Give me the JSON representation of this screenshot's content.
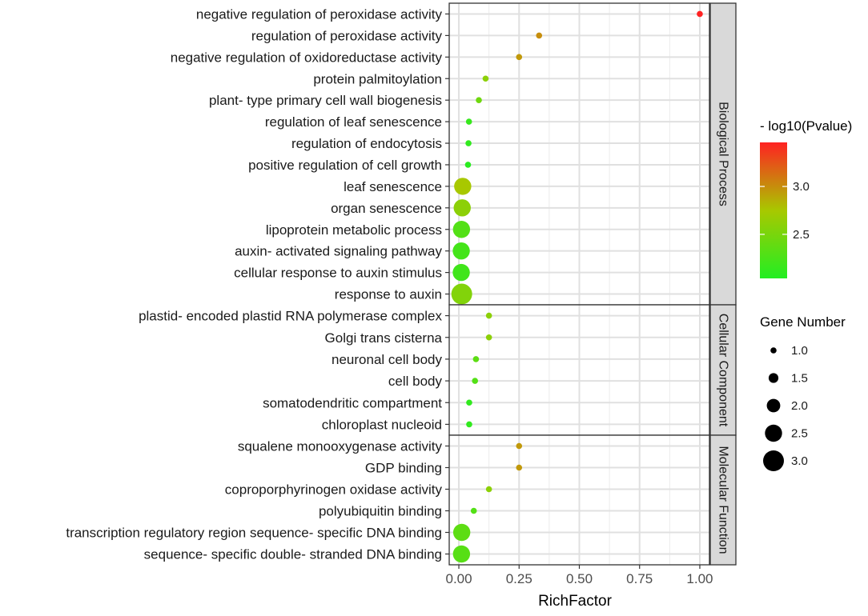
{
  "chart_data": {
    "type": "scatter",
    "title": "",
    "xlabel": "RichFactor",
    "ylabel": "",
    "xlim": [
      -0.04,
      1.04
    ],
    "x_ticks": [
      {
        "value": 0.0,
        "label": "0.00"
      },
      {
        "value": 0.25,
        "label": "0.25"
      },
      {
        "value": 0.5,
        "label": "0.50"
      },
      {
        "value": 0.75,
        "label": "0.75"
      },
      {
        "value": 1.0,
        "label": "1.00"
      }
    ],
    "grid": true,
    "color_scale": {
      "title": "- log10(Pvalue)",
      "min": 2.04,
      "max": 3.46,
      "low_color": "#22ee22",
      "high_color": "#ff2222",
      "ticks": [
        {
          "value": 2.5,
          "label": "2.5"
        },
        {
          "value": 3.0,
          "label": "3.0"
        }
      ]
    },
    "size_scale": {
      "title": "Gene Number",
      "ticks": [
        {
          "value": 1.0,
          "label": "1.0"
        },
        {
          "value": 1.5,
          "label": "1.5"
        },
        {
          "value": 2.0,
          "label": "2.0"
        },
        {
          "value": 2.5,
          "label": "2.5"
        },
        {
          "value": 3.0,
          "label": "3.0"
        }
      ]
    },
    "facets": [
      {
        "name": "Biological Process",
        "terms": [
          {
            "term": "negative regulation of peroxidase activity",
            "rich_factor": 1.0,
            "neg_log10_p": 3.46,
            "gene_number": 1
          },
          {
            "term": "regulation of peroxidase activity",
            "rich_factor": 0.333,
            "neg_log10_p": 3.0,
            "gene_number": 1
          },
          {
            "term": "negative regulation of oxidoreductase activity",
            "rich_factor": 0.25,
            "neg_log10_p": 2.95,
            "gene_number": 1
          },
          {
            "term": "protein palmitoylation",
            "rich_factor": 0.111,
            "neg_log10_p": 2.6,
            "gene_number": 1
          },
          {
            "term": "plant- type primary cell wall biogenesis",
            "rich_factor": 0.083,
            "neg_log10_p": 2.45,
            "gene_number": 1
          },
          {
            "term": "regulation of leaf senescence",
            "rich_factor": 0.042,
            "neg_log10_p": 2.15,
            "gene_number": 1
          },
          {
            "term": "regulation of endocytosis",
            "rich_factor": 0.04,
            "neg_log10_p": 2.12,
            "gene_number": 1
          },
          {
            "term": "positive regulation of cell growth",
            "rich_factor": 0.038,
            "neg_log10_p": 2.08,
            "gene_number": 1
          },
          {
            "term": "leaf senescence",
            "rich_factor": 0.016,
            "neg_log10_p": 2.75,
            "gene_number": 2.5
          },
          {
            "term": "organ senescence",
            "rich_factor": 0.014,
            "neg_log10_p": 2.6,
            "gene_number": 2.5
          },
          {
            "term": "lipoprotein metabolic process",
            "rich_factor": 0.011,
            "neg_log10_p": 2.3,
            "gene_number": 2.5
          },
          {
            "term": "auxin- activated signaling pathway",
            "rich_factor": 0.01,
            "neg_log10_p": 2.22,
            "gene_number": 2.5
          },
          {
            "term": "cellular response to auxin stimulus",
            "rich_factor": 0.01,
            "neg_log10_p": 2.2,
            "gene_number": 2.5
          },
          {
            "term": "response to auxin",
            "rich_factor": 0.012,
            "neg_log10_p": 2.55,
            "gene_number": 3
          }
        ]
      },
      {
        "name": "Cellular Component",
        "terms": [
          {
            "term": "plastid- encoded plastid RNA polymerase complex",
            "rich_factor": 0.125,
            "neg_log10_p": 2.6,
            "gene_number": 1
          },
          {
            "term": "Golgi trans cisterna",
            "rich_factor": 0.125,
            "neg_log10_p": 2.6,
            "gene_number": 1
          },
          {
            "term": "neuronal cell body",
            "rich_factor": 0.071,
            "neg_log10_p": 2.35,
            "gene_number": 1
          },
          {
            "term": "cell body",
            "rich_factor": 0.067,
            "neg_log10_p": 2.3,
            "gene_number": 1
          },
          {
            "term": "somatodendritic compartment",
            "rich_factor": 0.043,
            "neg_log10_p": 2.12,
            "gene_number": 1
          },
          {
            "term": "chloroplast nucleoid",
            "rich_factor": 0.043,
            "neg_log10_p": 2.12,
            "gene_number": 1
          }
        ]
      },
      {
        "name": "Molecular Function",
        "terms": [
          {
            "term": "squalene monooxygenase activity",
            "rich_factor": 0.25,
            "neg_log10_p": 2.95,
            "gene_number": 1
          },
          {
            "term": "GDP binding",
            "rich_factor": 0.25,
            "neg_log10_p": 2.95,
            "gene_number": 1
          },
          {
            "term": "coproporphyrinogen oxidase activity",
            "rich_factor": 0.125,
            "neg_log10_p": 2.6,
            "gene_number": 1
          },
          {
            "term": "polyubiquitin binding",
            "rich_factor": 0.062,
            "neg_log10_p": 2.3,
            "gene_number": 1
          },
          {
            "term": "transcription regulatory region sequence- specific DNA binding",
            "rich_factor": 0.012,
            "neg_log10_p": 2.35,
            "gene_number": 2.5
          },
          {
            "term": "sequence- specific double- stranded DNA binding",
            "rich_factor": 0.011,
            "neg_log10_p": 2.32,
            "gene_number": 2.5
          }
        ]
      }
    ]
  }
}
